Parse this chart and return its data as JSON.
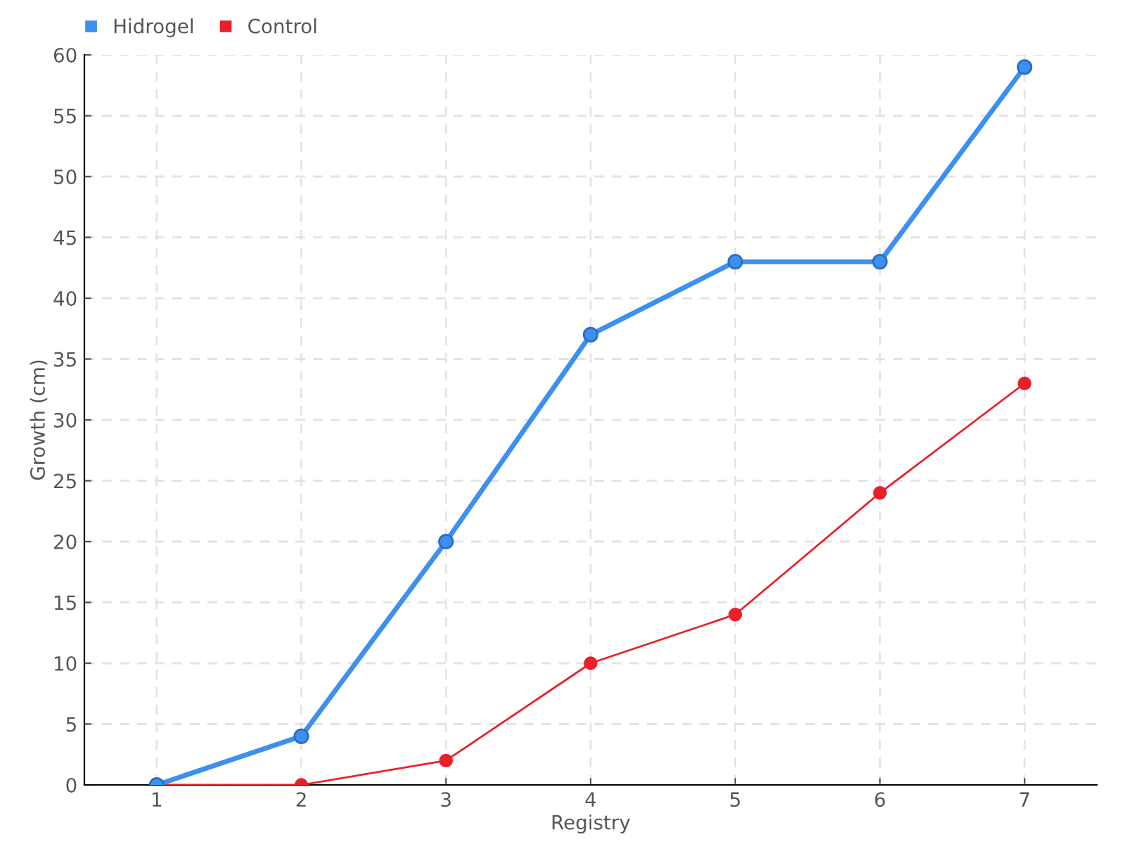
{
  "chart_data": {
    "type": "line",
    "xlabel": "Registry",
    "ylabel": "Growth (cm)",
    "categories": [
      "1",
      "2",
      "3",
      "4",
      "5",
      "6",
      "7"
    ],
    "series": [
      {
        "name": "Hidrogel",
        "color": "#3d8ff0",
        "values": [
          0,
          4,
          20,
          37,
          43,
          43,
          59
        ]
      },
      {
        "name": "Control",
        "color": "#e8202a",
        "values": [
          0,
          0,
          2,
          10,
          14,
          24,
          33
        ]
      }
    ],
    "ylim": [
      0,
      60
    ],
    "yticks": [
      0,
      5,
      10,
      15,
      20,
      25,
      30,
      35,
      40,
      45,
      50,
      55,
      60
    ],
    "grid": true,
    "legend": "top left",
    "marker": "circle",
    "line_style": "solid"
  }
}
